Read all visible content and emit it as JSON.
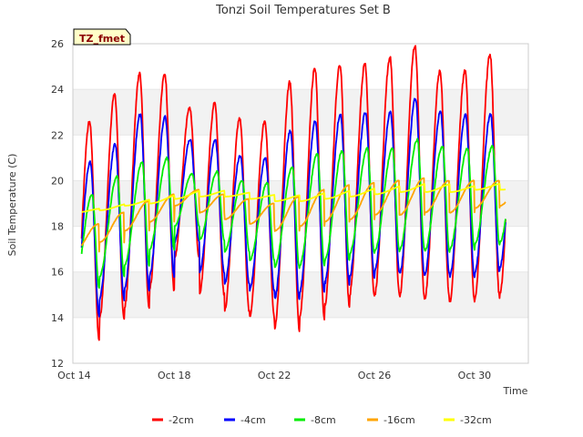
{
  "chart_data": {
    "type": "line",
    "title": "Tonzi Soil Temperatures Set B",
    "xlabel": "Time",
    "ylabel": "Soil Temperature (C)",
    "site_tag": "TZ_fmet",
    "ylim": [
      12,
      26
    ],
    "xlim_days": [
      13.95,
      32.15
    ],
    "x_ticks": [
      {
        "label": "Oct 14",
        "day": 14
      },
      {
        "label": "Oct 18",
        "day": 18
      },
      {
        "label": "Oct 22",
        "day": 22
      },
      {
        "label": "Oct 26",
        "day": 26
      },
      {
        "label": "Oct 30",
        "day": 30
      }
    ],
    "y_ticks": [
      12,
      14,
      16,
      18,
      20,
      22,
      24,
      26
    ],
    "grid": true,
    "legend_position": "bottom",
    "series": [
      {
        "name": "-2cm",
        "color": "#ff0000",
        "phase": 0.62,
        "mins": [
          13.0,
          13.9,
          14.4,
          15.2,
          16.6,
          15.0,
          14.3,
          14.0,
          13.5,
          14.0,
          14.5,
          15.0,
          15.0,
          14.9,
          14.8,
          14.7,
          14.9,
          15.0,
          16.6,
          17.4
        ],
        "maxs": [
          22.6,
          23.8,
          24.7,
          24.7,
          23.2,
          23.4,
          22.7,
          22.6,
          24.3,
          24.9,
          25.1,
          25.1,
          25.4,
          25.9,
          24.8,
          24.8,
          25.5,
          25.1,
          20.6
        ]
      },
      {
        "name": "-4cm",
        "color": "#0000ff",
        "phase": 0.64,
        "mins": [
          14.1,
          14.8,
          15.2,
          15.8,
          17.3,
          16.0,
          15.5,
          15.2,
          14.8,
          15.1,
          15.5,
          15.8,
          16.0,
          15.9,
          15.9,
          15.8,
          16.0,
          16.2,
          17.1,
          18.0
        ],
        "maxs": [
          20.8,
          21.6,
          22.9,
          22.8,
          21.8,
          21.8,
          21.1,
          21.0,
          22.2,
          22.6,
          22.9,
          23.0,
          23.0,
          23.6,
          23.0,
          22.9,
          22.9,
          22.8,
          20.2
        ]
      },
      {
        "name": "-8cm",
        "color": "#00ee00",
        "phase": 0.72,
        "mins": [
          15.3,
          15.8,
          16.3,
          17.0,
          18.0,
          17.4,
          16.9,
          16.5,
          16.2,
          16.3,
          16.5,
          16.8,
          16.9,
          17.0,
          16.9,
          17.0,
          17.2,
          17.3,
          18.2,
          18.5
        ],
        "maxs": [
          19.4,
          20.2,
          20.8,
          21.0,
          20.3,
          20.4,
          20.0,
          19.9,
          20.6,
          21.2,
          21.3,
          21.4,
          21.4,
          21.8,
          21.5,
          21.4,
          21.5,
          21.4,
          19.7
        ]
      },
      {
        "name": "-16cm",
        "color": "#ffa500",
        "phase": 0.98,
        "mins": [
          16.9,
          17.3,
          17.8,
          18.2,
          18.9,
          18.6,
          18.3,
          18.1,
          17.8,
          18.0,
          18.2,
          18.3,
          18.5,
          18.5,
          18.6,
          18.6,
          18.8,
          18.9,
          19.2,
          19.3
        ],
        "maxs": [
          18.1,
          18.6,
          19.1,
          19.4,
          19.6,
          19.4,
          19.2,
          19.0,
          19.3,
          19.6,
          19.8,
          19.9,
          20.0,
          20.1,
          20.0,
          20.0,
          20.0,
          20.0,
          19.7
        ]
      },
      {
        "name": "-32cm",
        "color": "#ffff00",
        "phase": 1.3,
        "mins": [
          18.6,
          18.7,
          18.9,
          19.0,
          19.2,
          19.3,
          19.3,
          19.2,
          19.1,
          19.1,
          19.2,
          19.3,
          19.4,
          19.5,
          19.5,
          19.5,
          19.6,
          19.6,
          19.6,
          19.6
        ],
        "maxs": [
          18.8,
          19.0,
          19.2,
          19.4,
          19.6,
          19.6,
          19.5,
          19.4,
          19.4,
          19.5,
          19.6,
          19.7,
          19.8,
          19.9,
          19.9,
          19.8,
          19.9,
          19.8,
          19.7
        ]
      }
    ]
  }
}
